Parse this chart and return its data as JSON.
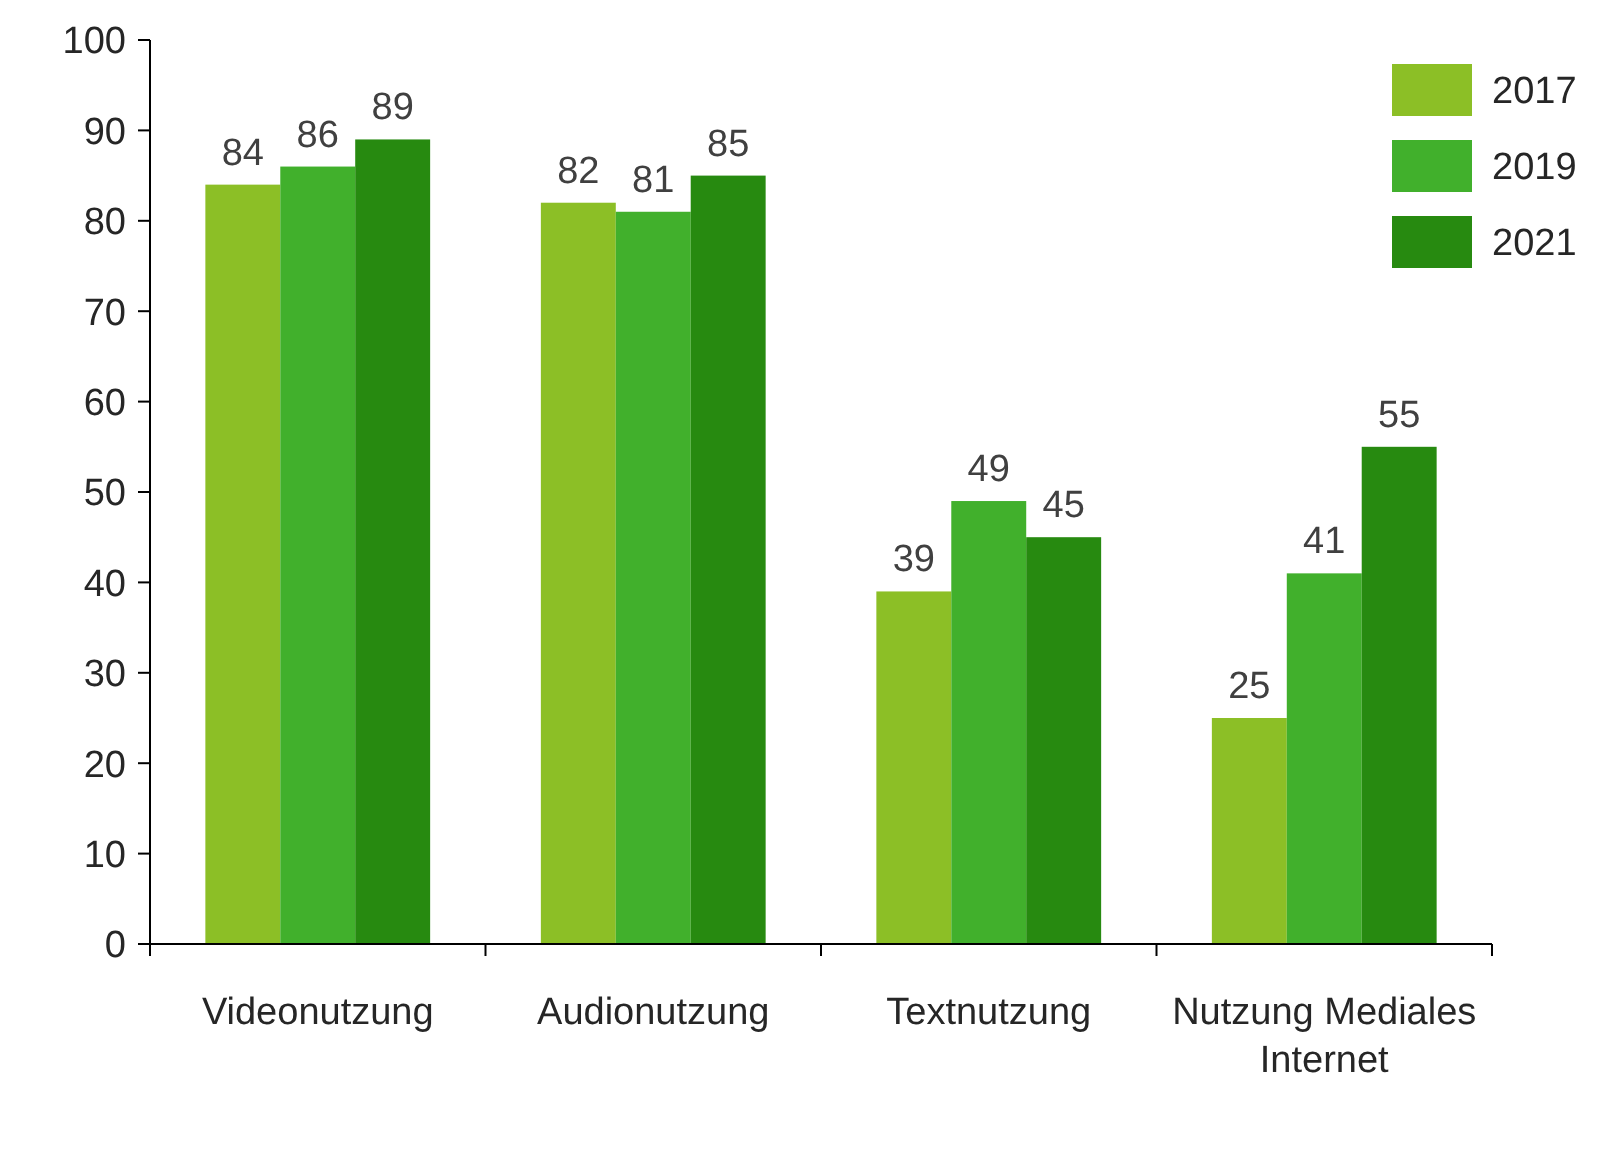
{
  "chart_data": {
    "type": "bar",
    "categories": [
      "Videonutzung",
      "Audionutzung",
      "Textnutzung",
      "Nutzung Mediales Internet"
    ],
    "series": [
      {
        "name": "2017",
        "color": "#8cbf26",
        "values": [
          84,
          82,
          39,
          25
        ]
      },
      {
        "name": "2019",
        "color": "#41b02c",
        "values": [
          86,
          81,
          49,
          41
        ]
      },
      {
        "name": "2021",
        "color": "#278a10",
        "values": [
          89,
          85,
          45,
          55
        ]
      }
    ],
    "ylim": [
      0,
      100
    ],
    "yticks": [
      0,
      10,
      20,
      30,
      40,
      50,
      60,
      70,
      80,
      90,
      100
    ],
    "grid": false,
    "legend": "top right",
    "data_labels": true
  }
}
